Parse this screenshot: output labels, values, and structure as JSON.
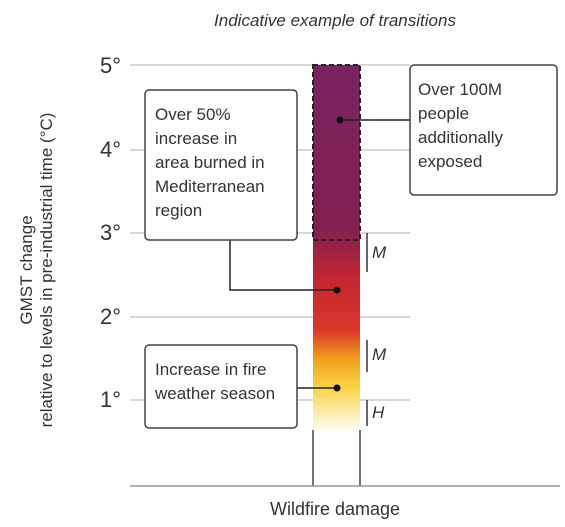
{
  "title": "Indicative example of transitions",
  "y_axis_label": [
    "GMST change",
    "relative to levels in pre-industrial time (°C)"
  ],
  "y_ticks": [
    "5°",
    "4°",
    "3°",
    "2°",
    "1°"
  ],
  "x_axis_label": "Wildfire damage",
  "confidence": [
    "M",
    "M",
    "H"
  ],
  "callouts": [
    {
      "lines": [
        "Over 50%",
        "increase in",
        "area burned in",
        "Mediterranean",
        "region"
      ]
    },
    {
      "lines": [
        "Over 100M",
        "people",
        "additionally",
        "exposed"
      ]
    },
    {
      "lines": [
        "Increase in fire",
        "weather season"
      ]
    }
  ]
}
